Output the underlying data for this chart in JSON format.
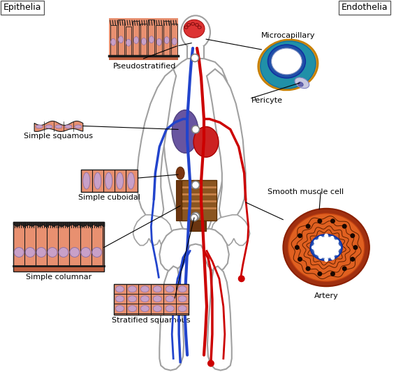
{
  "bg_color": "#ffffff",
  "epithelia_label": "Epithelia",
  "endothelia_label": "Endothelia",
  "epithelial_types": [
    "Pseudostratified",
    "Simple squamous",
    "Simple cuboidal",
    "Simple columnar",
    "Stratified squamous"
  ],
  "endothelial_types": [
    "Microcapillary",
    "Pericyte",
    "Smooth muscle cell",
    "Artery"
  ],
  "label_fontsize": 8,
  "skin_color": "#E89070",
  "skin_dark": "#D07855",
  "nucleus_color": "#C8A0C8",
  "nucleus_edge": "#9070A0",
  "dark_line_color": "#1a1a1a",
  "body_fill": "#ffffff",
  "body_edge": "#a0a0a0",
  "brain_red": "#cc3333",
  "lung_purple": "#7060a0",
  "heart_red": "#cc2222",
  "intestine_brown": "#8B5520",
  "kidney_brown": "#7B3510",
  "artery_red": "#cc0000",
  "vein_blue": "#2244cc",
  "capillary_teal": "#3090A0",
  "capillary_blue": "#2060B0",
  "capillary_yellow": "#D4A000",
  "artery_outer": "#B84000",
  "artery_orange": "#E07020",
  "artery_blue_ring": "#3060C0",
  "artery_lumen": "#CC2020"
}
